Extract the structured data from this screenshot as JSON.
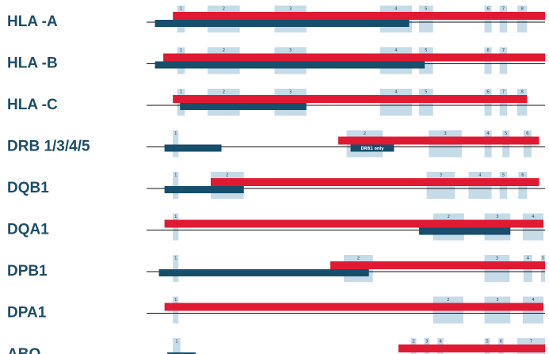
{
  "colors": {
    "exon": "#c5dbe8",
    "red_bar": "#e01a33",
    "navy_bar": "#164e6c",
    "line": "#111111",
    "label": "#1d4e68",
    "exon_number": "#33495a"
  },
  "genes": [
    {
      "name": "HLA -A",
      "exons": [
        {
          "n": "1",
          "start": 0.077,
          "end": 0.096
        },
        {
          "n": "2",
          "start": 0.153,
          "end": 0.234
        },
        {
          "n": "3",
          "start": 0.321,
          "end": 0.401
        },
        {
          "n": "4",
          "start": 0.586,
          "end": 0.666
        },
        {
          "n": "5",
          "start": 0.684,
          "end": 0.719
        },
        {
          "n": "6",
          "start": 0.848,
          "end": 0.866
        },
        {
          "n": "7",
          "start": 0.886,
          "end": 0.905
        },
        {
          "n": "8",
          "start": 0.93,
          "end": 0.955
        }
      ],
      "red": {
        "start": 0.066,
        "end": 1.0
      },
      "navy": {
        "start": 0.021,
        "end": 0.659
      }
    },
    {
      "name": "HLA -B",
      "exons": [
        {
          "n": "1",
          "start": 0.077,
          "end": 0.096
        },
        {
          "n": "2",
          "start": 0.153,
          "end": 0.234
        },
        {
          "n": "3",
          "start": 0.321,
          "end": 0.401
        },
        {
          "n": "4",
          "start": 0.586,
          "end": 0.666
        },
        {
          "n": "5",
          "start": 0.684,
          "end": 0.719
        },
        {
          "n": "6",
          "start": 0.848,
          "end": 0.866
        },
        {
          "n": "7",
          "start": 0.886,
          "end": 0.905
        }
      ],
      "red": {
        "start": 0.042,
        "end": 1.0
      },
      "navy": {
        "start": 0.021,
        "end": 0.698
      }
    },
    {
      "name": "HLA -C",
      "exons": [
        {
          "n": "1",
          "start": 0.077,
          "end": 0.096
        },
        {
          "n": "2",
          "start": 0.153,
          "end": 0.234
        },
        {
          "n": "3",
          "start": 0.321,
          "end": 0.401
        },
        {
          "n": "4",
          "start": 0.586,
          "end": 0.666
        },
        {
          "n": "5",
          "start": 0.684,
          "end": 0.719
        },
        {
          "n": "6",
          "start": 0.848,
          "end": 0.866
        },
        {
          "n": "7",
          "start": 0.886,
          "end": 0.905
        },
        {
          "n": "8",
          "start": 0.93,
          "end": 0.955
        }
      ],
      "red": {
        "start": 0.066,
        "end": 0.955
      },
      "navy": {
        "start": 0.084,
        "end": 0.401
      }
    },
    {
      "name": "DRB 1/3/4/5",
      "exons": [
        {
          "n": "1",
          "start": 0.066,
          "end": 0.08
        },
        {
          "n": "2",
          "start": 0.502,
          "end": 0.593
        },
        {
          "n": "3",
          "start": 0.708,
          "end": 0.791
        },
        {
          "n": "4",
          "start": 0.848,
          "end": 0.866
        },
        {
          "n": "5",
          "start": 0.893,
          "end": 0.911
        },
        {
          "n": "6",
          "start": 0.946,
          "end": 0.966
        }
      ],
      "red": {
        "start": 0.481,
        "end": 0.985
      },
      "navy": {
        "start": 0.045,
        "end": 0.188
      },
      "note": "DRB1 only",
      "note_bar": {
        "start": 0.512,
        "end": 0.621
      }
    },
    {
      "name": "DQB1",
      "exons": [
        {
          "n": "1",
          "start": 0.066,
          "end": 0.08
        },
        {
          "n": "2",
          "start": 0.161,
          "end": 0.244
        },
        {
          "n": "3",
          "start": 0.703,
          "end": 0.774
        },
        {
          "n": "4",
          "start": 0.808,
          "end": 0.866
        },
        {
          "n": "5",
          "start": 0.886,
          "end": 0.905
        },
        {
          "n": "6",
          "start": 0.933,
          "end": 0.955
        }
      ],
      "red": {
        "start": 0.161,
        "end": 0.985
      },
      "navy": {
        "start": 0.045,
        "end": 0.244
      }
    },
    {
      "name": "DQA1",
      "exons": [
        {
          "n": "1",
          "start": 0.066,
          "end": 0.08
        },
        {
          "n": "2",
          "start": 0.719,
          "end": 0.797
        },
        {
          "n": "3",
          "start": 0.848,
          "end": 0.913
        },
        {
          "n": "4",
          "start": 0.944,
          "end": 0.996
        }
      ],
      "red": {
        "start": 0.045,
        "end": 0.996
      },
      "navy": {
        "start": 0.684,
        "end": 0.913
      }
    },
    {
      "name": "DPB1",
      "exons": [
        {
          "n": "1",
          "start": 0.066,
          "end": 0.08
        },
        {
          "n": "2",
          "start": 0.495,
          "end": 0.568
        },
        {
          "n": "3",
          "start": 0.848,
          "end": 0.911
        },
        {
          "n": "4",
          "start": 0.946,
          "end": 0.968
        },
        {
          "n": "5",
          "start": 0.99,
          "end": 1.0
        }
      ],
      "red": {
        "start": 0.461,
        "end": 1.0
      },
      "navy": {
        "start": 0.031,
        "end": 0.558
      }
    },
    {
      "name": "DPA1",
      "exons": [
        {
          "n": "1",
          "start": 0.066,
          "end": 0.08
        },
        {
          "n": "2",
          "start": 0.719,
          "end": 0.795
        },
        {
          "n": "3",
          "start": 0.848,
          "end": 0.913
        },
        {
          "n": "4",
          "start": 0.944,
          "end": 0.996
        }
      ],
      "red": {
        "start": 0.045,
        "end": 0.996
      }
    },
    {
      "name": "ABO",
      "exons": [
        {
          "n": "1",
          "start": 0.066,
          "end": 0.085
        },
        {
          "n": "2",
          "start": 0.663,
          "end": 0.677
        },
        {
          "n": "3",
          "start": 0.697,
          "end": 0.71
        },
        {
          "n": "4",
          "start": 0.73,
          "end": 0.745
        },
        {
          "n": "5",
          "start": 0.848,
          "end": 0.862
        },
        {
          "n": "6",
          "start": 0.883,
          "end": 0.896
        },
        {
          "n": "7",
          "start": 0.93,
          "end": 1.0
        }
      ],
      "red": {
        "start": 0.632,
        "end": 1.0
      },
      "navy": {
        "start": 0.052,
        "end": 0.123
      }
    }
  ]
}
